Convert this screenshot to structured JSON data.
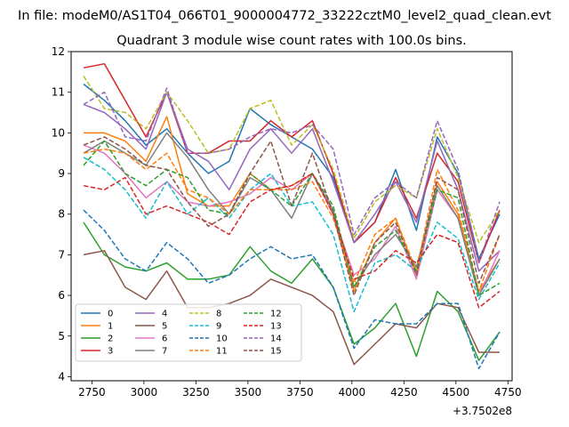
{
  "figure": {
    "suptitle": "In file: modeM0/AS1T04_066T01_9000004772_33222cztM0_level2_quad_clean.evt",
    "x_offset_label": "+3.7502e8"
  },
  "chart_data": {
    "type": "line",
    "title": "Quadrant 3 module wise count rates with 100.0s bins.",
    "xlabel": "",
    "ylabel": "",
    "x_offset": 375020000,
    "x": [
      2710,
      2810,
      2910,
      3010,
      3110,
      3210,
      3310,
      3410,
      3510,
      3610,
      3710,
      3810,
      3910,
      4010,
      4110,
      4210,
      4310,
      4410,
      4510,
      4610,
      4710
    ],
    "xlim": [
      2650,
      4770
    ],
    "ylim": [
      3.9,
      12.0
    ],
    "xticks": [
      2750,
      3000,
      3250,
      3500,
      3750,
      4000,
      4250,
      4500,
      4750
    ],
    "yticks": [
      4,
      5,
      6,
      7,
      8,
      9,
      10,
      11,
      12
    ],
    "legend_location": "lower left",
    "legend_columns": 4,
    "series": [
      {
        "name": "0",
        "color": "#1f77b4",
        "dash": "solid",
        "values": [
          11.2,
          10.8,
          10.3,
          9.7,
          10.1,
          9.5,
          9.0,
          9.3,
          10.6,
          10.2,
          9.9,
          9.6,
          8.9,
          7.3,
          7.8,
          9.1,
          7.6,
          9.9,
          9.0,
          6.9,
          8.0
        ]
      },
      {
        "name": "1",
        "color": "#ff7f0e",
        "dash": "solid",
        "values": [
          10.0,
          10.0,
          9.8,
          9.3,
          10.4,
          8.5,
          8.2,
          8.2,
          9.0,
          8.6,
          8.7,
          9.0,
          8.0,
          6.1,
          7.3,
          7.9,
          6.5,
          8.8,
          8.0,
          6.1,
          6.9
        ]
      },
      {
        "name": "2",
        "color": "#2ca02c",
        "dash": "solid",
        "values": [
          7.8,
          7.0,
          6.7,
          6.6,
          6.8,
          6.4,
          6.4,
          6.5,
          7.2,
          6.6,
          6.3,
          6.9,
          6.2,
          4.8,
          5.2,
          5.8,
          4.5,
          6.1,
          5.6,
          4.4,
          5.1
        ]
      },
      {
        "name": "3",
        "color": "#d62728",
        "dash": "solid",
        "values": [
          11.6,
          11.7,
          10.8,
          9.9,
          11.0,
          9.5,
          9.5,
          9.8,
          9.8,
          10.3,
          9.9,
          10.3,
          9.0,
          7.3,
          7.8,
          8.9,
          7.9,
          9.5,
          8.8,
          6.8,
          8.1
        ]
      },
      {
        "name": "4",
        "color": "#9467bd",
        "dash": "solid",
        "values": [
          10.7,
          10.5,
          10.1,
          9.6,
          11.0,
          9.6,
          9.3,
          8.6,
          9.6,
          10.1,
          9.5,
          10.1,
          8.8,
          7.3,
          8.0,
          8.8,
          7.8,
          9.8,
          8.6,
          6.6,
          7.1
        ]
      },
      {
        "name": "5",
        "color": "#8c564b",
        "dash": "solid",
        "values": [
          7.0,
          7.1,
          6.2,
          5.9,
          6.6,
          5.7,
          5.7,
          5.8,
          6.0,
          6.4,
          6.2,
          6.0,
          5.6,
          4.3,
          4.8,
          5.3,
          5.2,
          5.8,
          5.7,
          4.6,
          4.6
        ]
      },
      {
        "name": "6",
        "color": "#e377c2",
        "dash": "solid",
        "values": [
          9.7,
          9.5,
          9.0,
          8.4,
          8.8,
          8.3,
          8.2,
          8.3,
          8.5,
          8.9,
          8.6,
          9.0,
          8.0,
          6.5,
          6.9,
          7.7,
          6.4,
          8.6,
          7.9,
          6.0,
          7.1
        ]
      },
      {
        "name": "7",
        "color": "#7f7f7f",
        "dash": "solid",
        "values": [
          9.5,
          9.8,
          9.5,
          9.2,
          10.0,
          9.4,
          8.6,
          8.0,
          8.9,
          8.6,
          7.9,
          9.0,
          8.1,
          6.2,
          7.0,
          7.5,
          6.7,
          8.7,
          7.9,
          6.0,
          6.9
        ]
      },
      {
        "name": "8",
        "color": "#bcbd22",
        "dash": "dashed",
        "values": [
          11.4,
          10.6,
          10.5,
          10.1,
          11.0,
          10.3,
          9.5,
          9.6,
          10.6,
          10.8,
          9.7,
          10.2,
          9.1,
          7.4,
          8.3,
          8.7,
          8.4,
          10.1,
          8.9,
          7.3,
          8.1
        ]
      },
      {
        "name": "9",
        "color": "#17becf",
        "dash": "dashed",
        "values": [
          9.4,
          9.1,
          8.6,
          7.9,
          8.8,
          8.0,
          8.4,
          7.9,
          8.6,
          9.0,
          8.2,
          8.3,
          7.5,
          5.6,
          6.8,
          7.0,
          6.6,
          7.8,
          7.4,
          5.9,
          6.8
        ]
      },
      {
        "name": "10",
        "color": "#1f77b4",
        "dash": "dashed",
        "values": [
          8.1,
          7.6,
          6.9,
          6.6,
          7.3,
          6.9,
          6.3,
          6.5,
          6.9,
          7.2,
          6.9,
          7.0,
          6.2,
          4.7,
          5.4,
          5.3,
          5.3,
          5.8,
          5.8,
          4.2,
          5.1
        ]
      },
      {
        "name": "11",
        "color": "#ff7f0e",
        "dash": "dashed",
        "values": [
          9.5,
          9.6,
          9.5,
          9.1,
          9.5,
          8.6,
          8.4,
          8.0,
          8.6,
          8.6,
          8.6,
          8.8,
          7.9,
          6.3,
          7.5,
          7.9,
          6.6,
          9.1,
          8.1,
          6.1,
          7.5
        ]
      },
      {
        "name": "12",
        "color": "#2ca02c",
        "dash": "dashed",
        "values": [
          9.2,
          9.8,
          9.0,
          8.7,
          9.1,
          8.9,
          8.1,
          8.0,
          9.0,
          8.6,
          8.2,
          9.0,
          8.2,
          6.2,
          7.2,
          7.6,
          6.6,
          8.6,
          8.4,
          6.0,
          6.3
        ]
      },
      {
        "name": "13",
        "color": "#d62728",
        "dash": "dashed",
        "values": [
          8.7,
          8.6,
          8.9,
          8.0,
          8.2,
          8.0,
          7.8,
          7.5,
          8.3,
          8.6,
          8.7,
          9.0,
          8.0,
          6.4,
          6.6,
          7.1,
          6.8,
          7.5,
          7.3,
          5.7,
          6.1
        ]
      },
      {
        "name": "14",
        "color": "#9467bd",
        "dash": "dashed",
        "values": [
          10.7,
          11.0,
          9.9,
          9.8,
          11.1,
          9.5,
          9.5,
          9.6,
          9.9,
          10.1,
          10.0,
          10.2,
          9.6,
          7.5,
          8.4,
          8.8,
          8.4,
          10.3,
          9.1,
          6.8,
          8.3
        ]
      },
      {
        "name": "15",
        "color": "#8c564b",
        "dash": "dashed",
        "values": [
          9.7,
          9.9,
          9.6,
          9.2,
          9.1,
          8.3,
          7.7,
          8.0,
          9.0,
          9.8,
          8.2,
          9.5,
          8.0,
          6.0,
          7.3,
          7.8,
          6.5,
          8.9,
          8.6,
          6.3,
          7.5
        ]
      }
    ]
  }
}
